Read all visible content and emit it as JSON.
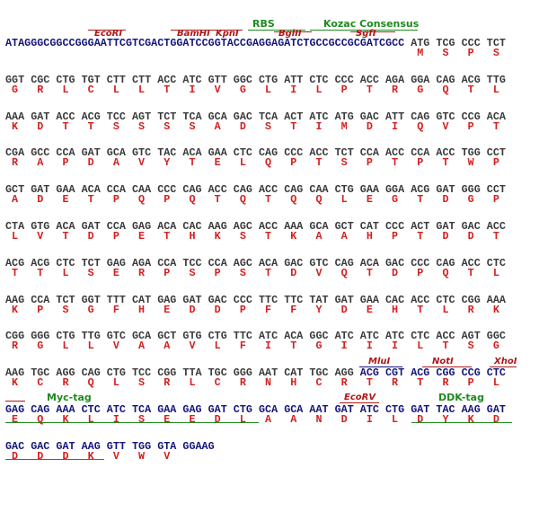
{
  "sites": [
    "EcoRI",
    "BamHI",
    "KpnI",
    "BglII",
    "SgfI",
    "MluI",
    "NotI",
    "XhoI",
    "EcoRV"
  ],
  "elements": [
    "RBS",
    "Kozac Consensus",
    "Myc-tag",
    "DDK-tag"
  ],
  "rows": [
    {
      "vector_prefix": "ATAGGGCGGCCGGGAATTCGTCGACTGGATCCGGTACCGAGGAGATCTGCCGCCGCGATCGCC",
      "codons": [
        "ATG",
        "TCG",
        "CCC",
        "TCT"
      ],
      "aa": [
        "M",
        "S",
        "P",
        "S"
      ]
    },
    {
      "codons": [
        "GGT",
        "CGC",
        "CTG",
        "TGT",
        "CTT",
        "CTT",
        "ACC",
        "ATC",
        "GTT",
        "GGC",
        "CTG",
        "ATT",
        "CTC",
        "CCC",
        "ACC",
        "AGA",
        "GGA",
        "CAG",
        "ACG",
        "TTG"
      ],
      "aa": [
        "G",
        "R",
        "L",
        "C",
        "L",
        "L",
        "T",
        "I",
        "V",
        "G",
        "L",
        "I",
        "L",
        "P",
        "T",
        "R",
        "G",
        "Q",
        "T",
        "L"
      ]
    },
    {
      "codons": [
        "AAA",
        "GAT",
        "ACC",
        "ACG",
        "TCC",
        "AGT",
        "TCT",
        "TCA",
        "GCA",
        "GAC",
        "TCA",
        "ACT",
        "ATC",
        "ATG",
        "GAC",
        "ATT",
        "CAG",
        "GTC",
        "CCG",
        "ACA"
      ],
      "aa": [
        "K",
        "D",
        "T",
        "T",
        "S",
        "S",
        "S",
        "S",
        "A",
        "D",
        "S",
        "T",
        "I",
        "M",
        "D",
        "I",
        "Q",
        "V",
        "P",
        "T"
      ]
    },
    {
      "codons": [
        "CGA",
        "GCC",
        "CCA",
        "GAT",
        "GCA",
        "GTC",
        "TAC",
        "ACA",
        "GAA",
        "CTC",
        "CAG",
        "CCC",
        "ACC",
        "TCT",
        "CCA",
        "ACC",
        "CCA",
        "ACC",
        "TGG",
        "CCT"
      ],
      "aa": [
        "R",
        "A",
        "P",
        "D",
        "A",
        "V",
        "Y",
        "T",
        "E",
        "L",
        "Q",
        "P",
        "T",
        "S",
        "P",
        "T",
        "P",
        "T",
        "W",
        "P"
      ]
    },
    {
      "codons": [
        "GCT",
        "GAT",
        "GAA",
        "ACA",
        "CCA",
        "CAA",
        "CCC",
        "CAG",
        "ACC",
        "CAG",
        "ACC",
        "CAG",
        "CAA",
        "CTG",
        "GAA",
        "GGA",
        "ACG",
        "GAT",
        "GGG",
        "CCT"
      ],
      "aa": [
        "A",
        "D",
        "E",
        "T",
        "P",
        "Q",
        "P",
        "Q",
        "T",
        "Q",
        "T",
        "Q",
        "Q",
        "L",
        "E",
        "G",
        "T",
        "D",
        "G",
        "P"
      ]
    },
    {
      "codons": [
        "CTA",
        "GTG",
        "ACA",
        "GAT",
        "CCA",
        "GAG",
        "ACA",
        "CAC",
        "AAG",
        "AGC",
        "ACC",
        "AAA",
        "GCA",
        "GCT",
        "CAT",
        "CCC",
        "ACT",
        "GAT",
        "GAC",
        "ACC"
      ],
      "aa": [
        "L",
        "V",
        "T",
        "D",
        "P",
        "E",
        "T",
        "H",
        "K",
        "S",
        "T",
        "K",
        "A",
        "A",
        "H",
        "P",
        "T",
        "D",
        "D",
        "T"
      ]
    },
    {
      "codons": [
        "ACG",
        "ACG",
        "CTC",
        "TCT",
        "GAG",
        "AGA",
        "CCA",
        "TCC",
        "CCA",
        "AGC",
        "ACA",
        "GAC",
        "GTC",
        "CAG",
        "ACA",
        "GAC",
        "CCC",
        "CAG",
        "ACC",
        "CTC"
      ],
      "aa": [
        "T",
        "T",
        "L",
        "S",
        "E",
        "R",
        "P",
        "S",
        "P",
        "S",
        "T",
        "D",
        "V",
        "Q",
        "T",
        "D",
        "P",
        "Q",
        "T",
        "L"
      ]
    },
    {
      "codons": [
        "AAG",
        "CCA",
        "TCT",
        "GGT",
        "TTT",
        "CAT",
        "GAG",
        "GAT",
        "GAC",
        "CCC",
        "TTC",
        "TTC",
        "TAT",
        "GAT",
        "GAA",
        "CAC",
        "ACC",
        "CTC",
        "CGG",
        "AAA"
      ],
      "aa": [
        "K",
        "P",
        "S",
        "G",
        "F",
        "H",
        "E",
        "D",
        "D",
        "P",
        "F",
        "F",
        "Y",
        "D",
        "E",
        "H",
        "T",
        "L",
        "R",
        "K"
      ]
    },
    {
      "codons": [
        "CGG",
        "GGG",
        "CTG",
        "TTG",
        "GTC",
        "GCA",
        "GCT",
        "GTG",
        "CTG",
        "TTC",
        "ATC",
        "ACA",
        "GGC",
        "ATC",
        "ATC",
        "ATC",
        "CTC",
        "ACC",
        "AGT",
        "GGC"
      ],
      "aa": [
        "R",
        "G",
        "L",
        "L",
        "V",
        "A",
        "A",
        "V",
        "L",
        "F",
        "I",
        "T",
        "G",
        "I",
        "I",
        "I",
        "L",
        "T",
        "S",
        "G"
      ]
    },
    {
      "codons": [
        "AAG",
        "TGC",
        "AGG",
        "CAG",
        "CTG",
        "TCC",
        "CGG",
        "TTA",
        "TGC",
        "GGG",
        "AAT",
        "CAT",
        "TGC",
        "AGG"
      ],
      "vector_codons": [
        "ACG",
        "CGT",
        "ACG",
        "CGG",
        "CCG",
        "CTC"
      ],
      "aa": [
        "K",
        "C",
        "R",
        "Q",
        "L",
        "S",
        "R",
        "L",
        "C",
        "R",
        "N",
        "H",
        "C",
        "R",
        "T",
        "R",
        "T",
        "R",
        "P",
        "L"
      ]
    },
    {
      "vector_codons": [
        "GAG",
        "CAG",
        "AAA",
        "CTC",
        "ATC",
        "TCA",
        "GAA",
        "GAG",
        "GAT",
        "CTG",
        "GCA",
        "GCA",
        "AAT",
        "GAT",
        "ATC",
        "CTG",
        "GAT",
        "TAC",
        "AAG",
        "GAT"
      ],
      "aa": [
        "E",
        "Q",
        "K",
        "L",
        "I",
        "S",
        "E",
        "E",
        "D",
        "L",
        "A",
        "A",
        "N",
        "D",
        "I",
        "L",
        "D",
        "Y",
        "K",
        "D"
      ]
    },
    {
      "vector_codons": [
        "GAC",
        "GAC",
        "GAT",
        "AAG",
        "GTT",
        "TGG",
        "GTA",
        "GGAAG"
      ],
      "aa": [
        "D",
        "D",
        "D",
        "K",
        "V",
        "W",
        "V"
      ]
    }
  ]
}
